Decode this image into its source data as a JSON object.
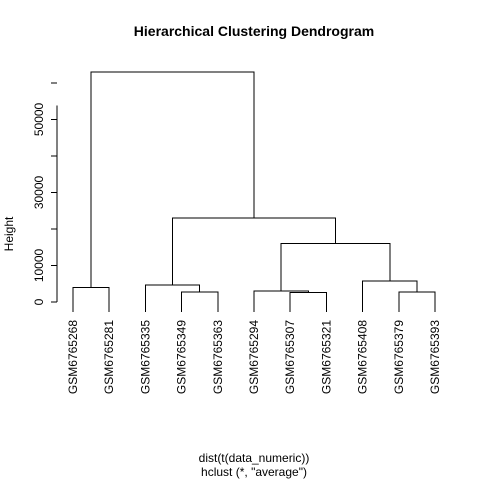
{
  "chart_data": {
    "type": "dendrogram",
    "title": "Hierarchical Clustering Dendrogram",
    "ylabel": "Height",
    "xlabel": "dist(t(data_numeric))",
    "sub": "hclust (*, \"average\")",
    "yticks": [
      0,
      10000,
      30000,
      50000
    ],
    "ytick_labels": [
      "0",
      "10000",
      "30000",
      "50000"
    ],
    "ylim": [
      0,
      63000
    ],
    "leaves": [
      "GSM6765268",
      "GSM6765281",
      "GSM6765335",
      "GSM6765349",
      "GSM6765363",
      "GSM6765294",
      "GSM6765307",
      "GSM6765321",
      "GSM6765408",
      "GSM6765379",
      "GSM6765393"
    ],
    "merges": [
      {
        "id": "m1",
        "left": 0,
        "right": 1,
        "height": 4000
      },
      {
        "id": "m2",
        "left": 3,
        "right": 4,
        "height": 2800
      },
      {
        "id": "m3",
        "left": 2,
        "right": "m2",
        "height": 4600
      },
      {
        "id": "m4",
        "left": 6,
        "right": 7,
        "height": 2600
      },
      {
        "id": "m5",
        "left": 5,
        "right": "m4",
        "height": 3000
      },
      {
        "id": "m6",
        "left": 9,
        "right": 10,
        "height": 2800
      },
      {
        "id": "m7",
        "left": 8,
        "right": "m6",
        "height": 5800
      },
      {
        "id": "m8",
        "left": "m5",
        "right": "m7",
        "height": 16000
      },
      {
        "id": "m9",
        "left": "m3",
        "right": "m8",
        "height": 23000
      },
      {
        "id": "m10",
        "left": "m1",
        "right": "m9",
        "height": 63000
      }
    ]
  }
}
